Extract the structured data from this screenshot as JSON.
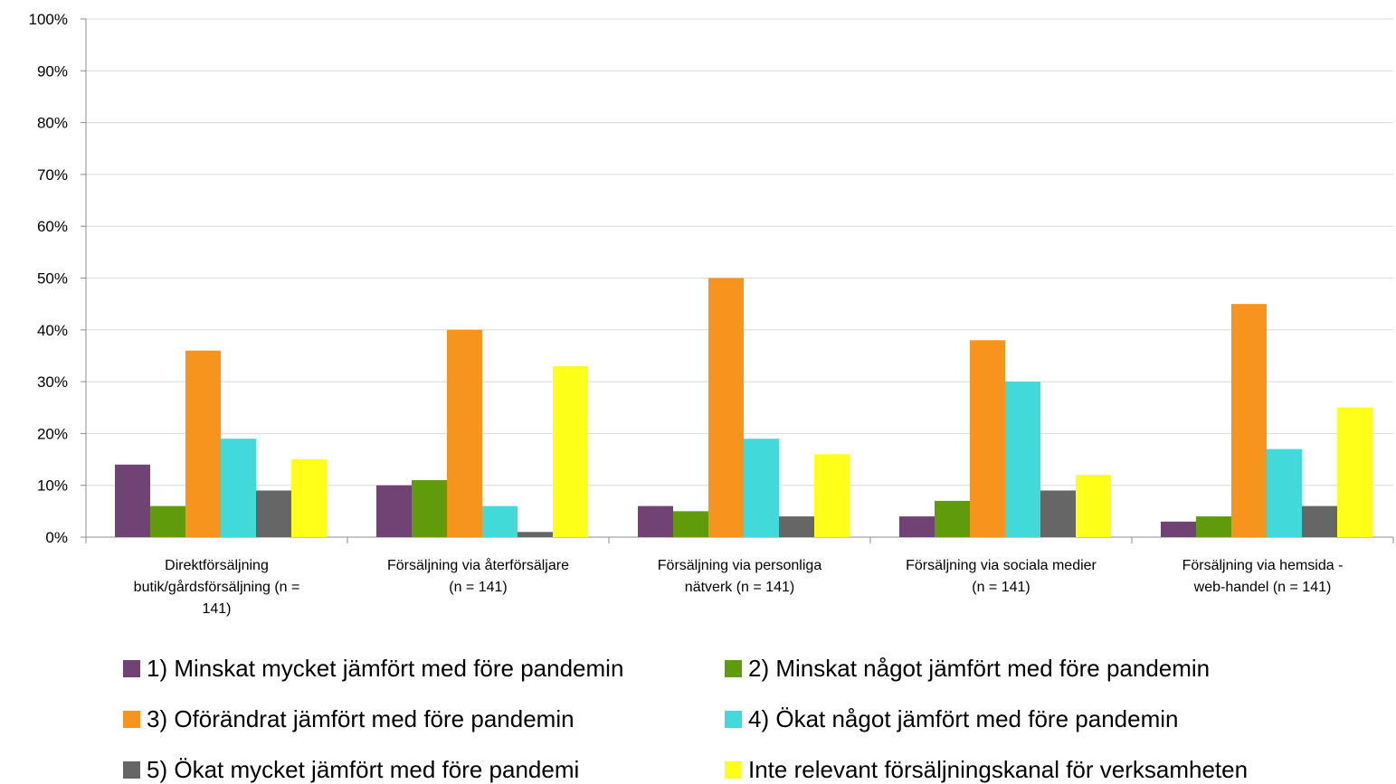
{
  "chart_data": {
    "type": "bar",
    "categories": [
      [
        "Direktförsäljning",
        "butik/gårdsförsäljning (n =",
        "141)"
      ],
      [
        "Försäljning via återförsäljare",
        "(n = 141)"
      ],
      [
        "Försäljning via personliga",
        "nätverk (n = 141)"
      ],
      [
        "Försäljning via sociala medier",
        "(n = 141)"
      ],
      [
        "Försäljning via hemsida -",
        "web-handel (n = 141)"
      ]
    ],
    "series": [
      {
        "name": "1) Minskat mycket jämfört med före pandemin",
        "color": "#704374",
        "values": [
          14,
          10,
          6,
          4,
          3
        ]
      },
      {
        "name": "2) Minskat något jämfört med före pandemin",
        "color": "#5f9b0a",
        "values": [
          6,
          11,
          5,
          7,
          4
        ]
      },
      {
        "name": "3) Oförändrat jämfört med före pandemin",
        "color": "#f7941e",
        "values": [
          36,
          40,
          50,
          38,
          45
        ]
      },
      {
        "name": "4) Ökat något jämfört med före pandemin",
        "color": "#41d9d9",
        "values": [
          19,
          6,
          19,
          30,
          17
        ]
      },
      {
        "name": "5) Ökat mycket jämfört med före pandemi",
        "color": "#666666",
        "values": [
          9,
          1,
          4,
          9,
          6
        ]
      },
      {
        "name": "Inte relevant försäljningskanal för verksamheten",
        "color": "#ffff19",
        "values": [
          15,
          33,
          16,
          12,
          25
        ]
      }
    ],
    "yticks": [
      "0%",
      "10%",
      "20%",
      "30%",
      "40%",
      "50%",
      "60%",
      "70%",
      "80%",
      "90%",
      "100%"
    ],
    "ylim": [
      0,
      100
    ],
    "grid": true,
    "legend_position": "bottom"
  }
}
